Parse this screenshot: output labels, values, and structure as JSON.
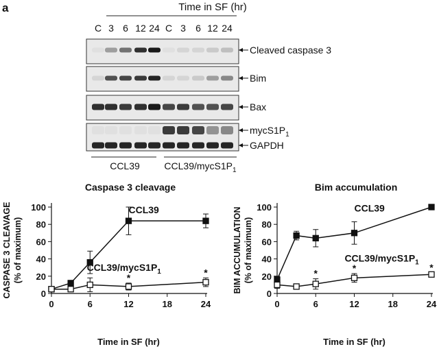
{
  "panel_label": "a",
  "blot": {
    "header_title": "Time in SF (hr)",
    "lanes": [
      "C",
      "3",
      "6",
      "12",
      "24",
      "C",
      "3",
      "6",
      "12",
      "24"
    ],
    "rows": [
      {
        "label": "Cleaved caspase 3",
        "intensity": [
          0.05,
          0.35,
          0.55,
          0.85,
          0.95,
          0.05,
          0.1,
          0.1,
          0.15,
          0.2
        ]
      },
      {
        "label": "Bim",
        "intensity": [
          0.1,
          0.7,
          0.75,
          0.8,
          0.9,
          0.1,
          0.1,
          0.15,
          0.35,
          0.45
        ]
      },
      {
        "label": "Bax",
        "intensity": [
          0.85,
          0.85,
          0.8,
          0.85,
          0.95,
          0.75,
          0.8,
          0.7,
          0.7,
          0.75
        ]
      },
      {
        "label_main": "mycS1P",
        "label_sub": "1",
        "intensity": [
          0.05,
          0.05,
          0.05,
          0.05,
          0.05,
          0.8,
          0.8,
          0.75,
          0.4,
          0.45
        ]
      },
      {
        "label": "GAPDH",
        "intensity": [
          0.9,
          0.9,
          0.9,
          0.9,
          0.9,
          0.9,
          0.9,
          0.9,
          0.9,
          0.9
        ]
      }
    ],
    "groups": [
      {
        "label_main": "CCL39",
        "label_sub": ""
      },
      {
        "label_main": "CCL39/mycS1P",
        "label_sub": "1"
      }
    ]
  },
  "chart_data": [
    {
      "type": "line",
      "title": "Caspase 3 cleavage",
      "xlabel": "Time in SF (hr)",
      "ylabel": "CASPASE 3 CLEAVAGE",
      "ylabel2": "(% of maximum)",
      "xlim": [
        0,
        24
      ],
      "ylim": [
        0,
        100
      ],
      "xticks": [
        0,
        6,
        12,
        18,
        24
      ],
      "yticks": [
        0,
        20,
        40,
        60,
        80,
        100
      ],
      "series": [
        {
          "name": "CCL39",
          "marker": "filled-square",
          "x": [
            0,
            3,
            6,
            12,
            24
          ],
          "y": [
            5,
            12,
            36,
            84,
            84
          ],
          "err": [
            3,
            0,
            13,
            16,
            8
          ],
          "label_x": 12,
          "label_y": 93
        },
        {
          "name_main": "CCL39/mycS1P",
          "name_sub": "1",
          "marker": "open-square",
          "x": [
            0,
            3,
            6,
            12,
            24
          ],
          "y": [
            5,
            5,
            10,
            8,
            13
          ],
          "err": [
            3,
            0,
            8,
            4,
            5
          ],
          "label_x": 5.5,
          "label_y": 26,
          "stars_x": [
            12,
            24
          ]
        }
      ],
      "star": "*"
    },
    {
      "type": "line",
      "title": "Bim accumulation",
      "xlabel": "Time in SF (hr)",
      "ylabel": "BIM ACCUMULATION",
      "ylabel2": "(% of maximum)",
      "xlim": [
        0,
        24
      ],
      "ylim": [
        0,
        100
      ],
      "xticks": [
        0,
        6,
        12,
        18,
        24
      ],
      "yticks": [
        0,
        20,
        40,
        60,
        80,
        100
      ],
      "series": [
        {
          "name": "CCL39",
          "marker": "filled-square",
          "x": [
            0,
            3,
            6,
            12,
            24
          ],
          "y": [
            16,
            67,
            64,
            70,
            100
          ],
          "err": [
            4,
            5,
            10,
            13,
            0
          ],
          "label_x": 12,
          "label_y": 95
        },
        {
          "name_main": "CCL39/mycS1P",
          "name_sub": "1",
          "marker": "open-square",
          "x": [
            0,
            3,
            6,
            12,
            24
          ],
          "y": [
            10,
            8,
            11,
            18,
            22
          ],
          "err": [
            4,
            3,
            6,
            5,
            2
          ],
          "label_x": 10.5,
          "label_y": 37,
          "stars_x": [
            6,
            12,
            24
          ]
        }
      ],
      "star": "*"
    }
  ]
}
